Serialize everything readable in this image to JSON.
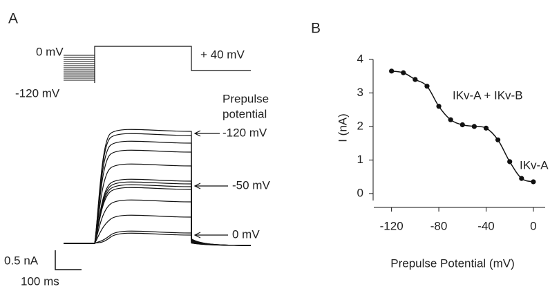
{
  "panel_a": {
    "label": "A",
    "hold": "0 mV",
    "prepulse_min": "-120 mV",
    "test": "+ 40 mV",
    "legend_title": [
      "Prepulse",
      "potential"
    ],
    "arrows": [
      "-120 mV",
      "-50 mV",
      "0 mV"
    ],
    "scale_current": "0.5 nA",
    "scale_time": "100 ms"
  },
  "chart_data": {
    "type": "scatter",
    "label": "B",
    "x_label": "Prepulse Potential (mV)",
    "y_label": "I (nA)",
    "x": [
      -120,
      -110,
      -100,
      -90,
      -80,
      -70,
      -60,
      -50,
      -40,
      -30,
      -20,
      -10,
      0
    ],
    "series": [
      {
        "color": "#111111",
        "values": [
          3.65,
          3.6,
          3.4,
          3.2,
          2.6,
          2.2,
          2.05,
          2.0,
          1.95,
          1.6,
          0.95,
          0.45,
          0.35
        ]
      }
    ],
    "fit_line": true,
    "annotations": [
      "IKv-A + IKv-B",
      "IKv-A"
    ],
    "xlim": [
      -135,
      10
    ],
    "xticks": [
      -120,
      -80,
      -40,
      0
    ],
    "ylim": [
      -0.3,
      4.1
    ],
    "yticks": [
      0,
      1,
      2,
      3,
      4
    ]
  }
}
